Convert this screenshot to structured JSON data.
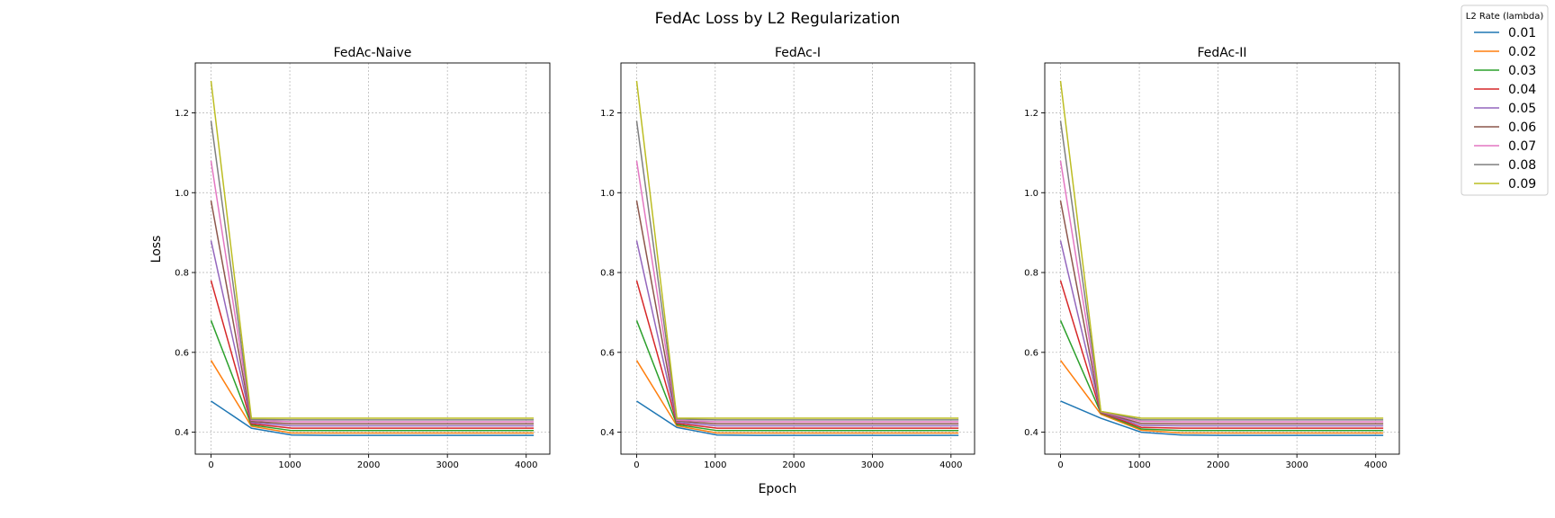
{
  "figure": {
    "suptitle": "FedAc Loss by L2 Regularization",
    "xlabel": "Epoch",
    "ylabel": "Loss",
    "legend_title": "L2 Rate (lambda)",
    "legend_placement": "top-right outside"
  },
  "chart_data": [
    {
      "type": "line",
      "title": "FedAc-Naive",
      "xlim": [
        -200,
        4300
      ],
      "ylim": [
        0.345,
        1.325
      ],
      "xticks": [
        0,
        1000,
        2000,
        3000,
        4000
      ],
      "yticks": [
        0.4,
        0.6,
        0.8,
        1.0,
        1.2
      ],
      "xtick_labels": [
        "0",
        "1000",
        "2000",
        "3000",
        "4000"
      ],
      "ytick_labels": [
        "0.4",
        "0.6",
        "0.8",
        "1.0",
        "1.2"
      ],
      "grid": true,
      "x": [
        0,
        512,
        1024,
        1536,
        2048,
        2560,
        3072,
        3584,
        4096
      ],
      "series": [
        {
          "name": "0.01",
          "color": "#1f77b4",
          "values": [
            0.478,
            0.41,
            0.393,
            0.392,
            0.392,
            0.392,
            0.392,
            0.392,
            0.392
          ]
        },
        {
          "name": "0.02",
          "color": "#ff7f0e",
          "values": [
            0.58,
            0.415,
            0.398,
            0.398,
            0.398,
            0.398,
            0.398,
            0.398,
            0.398
          ]
        },
        {
          "name": "0.03",
          "color": "#2ca02c",
          "values": [
            0.68,
            0.418,
            0.404,
            0.404,
            0.404,
            0.404,
            0.404,
            0.404,
            0.404
          ]
        },
        {
          "name": "0.04",
          "color": "#d62728",
          "values": [
            0.78,
            0.421,
            0.41,
            0.41,
            0.41,
            0.41,
            0.41,
            0.41,
            0.41
          ]
        },
        {
          "name": "0.05",
          "color": "#9467bd",
          "values": [
            0.88,
            0.424,
            0.416,
            0.416,
            0.416,
            0.416,
            0.416,
            0.416,
            0.416
          ]
        },
        {
          "name": "0.06",
          "color": "#8c564b",
          "values": [
            0.98,
            0.427,
            0.421,
            0.421,
            0.421,
            0.421,
            0.421,
            0.421,
            0.421
          ]
        },
        {
          "name": "0.07",
          "color": "#e377c2",
          "values": [
            1.08,
            0.43,
            0.426,
            0.426,
            0.426,
            0.426,
            0.426,
            0.426,
            0.426
          ]
        },
        {
          "name": "0.08",
          "color": "#7f7f7f",
          "values": [
            1.18,
            0.432,
            0.431,
            0.431,
            0.431,
            0.431,
            0.431,
            0.431,
            0.431
          ]
        },
        {
          "name": "0.09",
          "color": "#bcbd22",
          "values": [
            1.28,
            0.435,
            0.435,
            0.435,
            0.435,
            0.435,
            0.435,
            0.435,
            0.435
          ]
        }
      ]
    },
    {
      "type": "line",
      "title": "FedAc-I",
      "xlim": [
        -200,
        4300
      ],
      "ylim": [
        0.345,
        1.325
      ],
      "xticks": [
        0,
        1000,
        2000,
        3000,
        4000
      ],
      "yticks": [
        0.4,
        0.6,
        0.8,
        1.0,
        1.2
      ],
      "xtick_labels": [
        "0",
        "1000",
        "2000",
        "3000",
        "4000"
      ],
      "ytick_labels": [
        "0.4",
        "0.6",
        "0.8",
        "1.0",
        "1.2"
      ],
      "grid": true,
      "x": [
        0,
        512,
        1024,
        1536,
        2048,
        2560,
        3072,
        3584,
        4096
      ],
      "series": [
        {
          "name": "0.01",
          "color": "#1f77b4",
          "values": [
            0.478,
            0.412,
            0.393,
            0.392,
            0.392,
            0.392,
            0.392,
            0.392,
            0.392
          ]
        },
        {
          "name": "0.02",
          "color": "#ff7f0e",
          "values": [
            0.58,
            0.416,
            0.398,
            0.398,
            0.398,
            0.398,
            0.398,
            0.398,
            0.398
          ]
        },
        {
          "name": "0.03",
          "color": "#2ca02c",
          "values": [
            0.68,
            0.419,
            0.404,
            0.404,
            0.404,
            0.404,
            0.404,
            0.404,
            0.404
          ]
        },
        {
          "name": "0.04",
          "color": "#d62728",
          "values": [
            0.78,
            0.422,
            0.41,
            0.41,
            0.41,
            0.41,
            0.41,
            0.41,
            0.41
          ]
        },
        {
          "name": "0.05",
          "color": "#9467bd",
          "values": [
            0.88,
            0.425,
            0.416,
            0.416,
            0.416,
            0.416,
            0.416,
            0.416,
            0.416
          ]
        },
        {
          "name": "0.06",
          "color": "#8c564b",
          "values": [
            0.98,
            0.428,
            0.421,
            0.421,
            0.421,
            0.421,
            0.421,
            0.421,
            0.421
          ]
        },
        {
          "name": "0.07",
          "color": "#e377c2",
          "values": [
            1.08,
            0.43,
            0.426,
            0.426,
            0.426,
            0.426,
            0.426,
            0.426,
            0.426
          ]
        },
        {
          "name": "0.08",
          "color": "#7f7f7f",
          "values": [
            1.18,
            0.433,
            0.431,
            0.431,
            0.431,
            0.431,
            0.431,
            0.431,
            0.431
          ]
        },
        {
          "name": "0.09",
          "color": "#bcbd22",
          "values": [
            1.28,
            0.435,
            0.435,
            0.435,
            0.435,
            0.435,
            0.435,
            0.435,
            0.435
          ]
        }
      ]
    },
    {
      "type": "line",
      "title": "FedAc-II",
      "xlim": [
        -200,
        4300
      ],
      "ylim": [
        0.345,
        1.325
      ],
      "xticks": [
        0,
        1000,
        2000,
        3000,
        4000
      ],
      "yticks": [
        0.4,
        0.6,
        0.8,
        1.0,
        1.2
      ],
      "xtick_labels": [
        "0",
        "1000",
        "2000",
        "3000",
        "4000"
      ],
      "ytick_labels": [
        "0.4",
        "0.6",
        "0.8",
        "1.0",
        "1.2"
      ],
      "grid": true,
      "x": [
        0,
        512,
        1024,
        1536,
        2048,
        2560,
        3072,
        3584,
        4096
      ],
      "series": [
        {
          "name": "0.01",
          "color": "#1f77b4",
          "values": [
            0.478,
            0.435,
            0.4,
            0.393,
            0.392,
            0.392,
            0.392,
            0.392,
            0.392
          ]
        },
        {
          "name": "0.02",
          "color": "#ff7f0e",
          "values": [
            0.58,
            0.445,
            0.405,
            0.398,
            0.398,
            0.398,
            0.398,
            0.398,
            0.398
          ]
        },
        {
          "name": "0.03",
          "color": "#2ca02c",
          "values": [
            0.68,
            0.448,
            0.408,
            0.404,
            0.404,
            0.404,
            0.404,
            0.404,
            0.404
          ]
        },
        {
          "name": "0.04",
          "color": "#d62728",
          "values": [
            0.78,
            0.449,
            0.412,
            0.41,
            0.41,
            0.41,
            0.41,
            0.41,
            0.41
          ]
        },
        {
          "name": "0.05",
          "color": "#9467bd",
          "values": [
            0.88,
            0.45,
            0.417,
            0.416,
            0.416,
            0.416,
            0.416,
            0.416,
            0.416
          ]
        },
        {
          "name": "0.06",
          "color": "#8c564b",
          "values": [
            0.98,
            0.45,
            0.422,
            0.421,
            0.421,
            0.421,
            0.421,
            0.421,
            0.421
          ]
        },
        {
          "name": "0.07",
          "color": "#e377c2",
          "values": [
            1.08,
            0.451,
            0.427,
            0.426,
            0.426,
            0.426,
            0.426,
            0.426,
            0.426
          ]
        },
        {
          "name": "0.08",
          "color": "#7f7f7f",
          "values": [
            1.18,
            0.452,
            0.431,
            0.431,
            0.431,
            0.431,
            0.431,
            0.431,
            0.431
          ]
        },
        {
          "name": "0.09",
          "color": "#bcbd22",
          "values": [
            1.28,
            0.452,
            0.435,
            0.435,
            0.435,
            0.435,
            0.435,
            0.435,
            0.435
          ]
        }
      ]
    }
  ]
}
